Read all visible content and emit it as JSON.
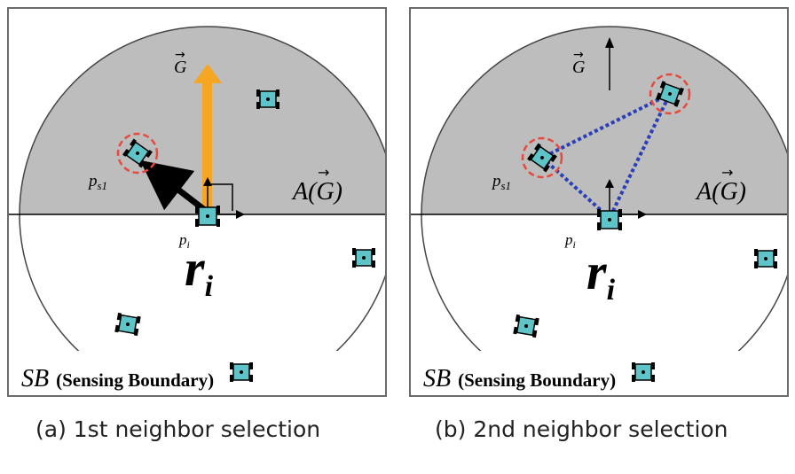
{
  "panels": [
    {
      "goal_label": "G",
      "goal_arrow": "→",
      "area_label": "A(G)",
      "area_label_prefix": "A(",
      "area_label_suffix": ")",
      "ps_label_main": "p",
      "ps_label_sub": "s1",
      "pi_label_main": "p",
      "pi_label_sub": "i",
      "robot_label_main": "r",
      "robot_label_sub": "i",
      "sb_abbrev": "SB",
      "sb_text": "(Sensing Boundary)",
      "caption": "(a) 1st neighbor selection"
    },
    {
      "goal_label": "G",
      "goal_arrow": "→",
      "area_label_prefix": "A(",
      "area_label_suffix": ")",
      "ps_label_main": "p",
      "ps_label_sub": "s1",
      "pi_label_main": "p",
      "pi_label_sub": "i",
      "robot_label_main": "r",
      "robot_label_sub": "i",
      "sb_abbrev": "SB",
      "sb_text": "(Sensing Boundary)",
      "caption": "(b) 2nd neighbor selection"
    }
  ],
  "colors": {
    "area_fill": "#bdbdbd",
    "goal_arrow": "#f5a623",
    "robot_body": "#5ec4c8",
    "highlight_ring": "#e8493c",
    "link_line": "#2a3fb8"
  },
  "icons": [
    "robot-icon",
    "goal-direction-arrow",
    "selection-ring"
  ]
}
